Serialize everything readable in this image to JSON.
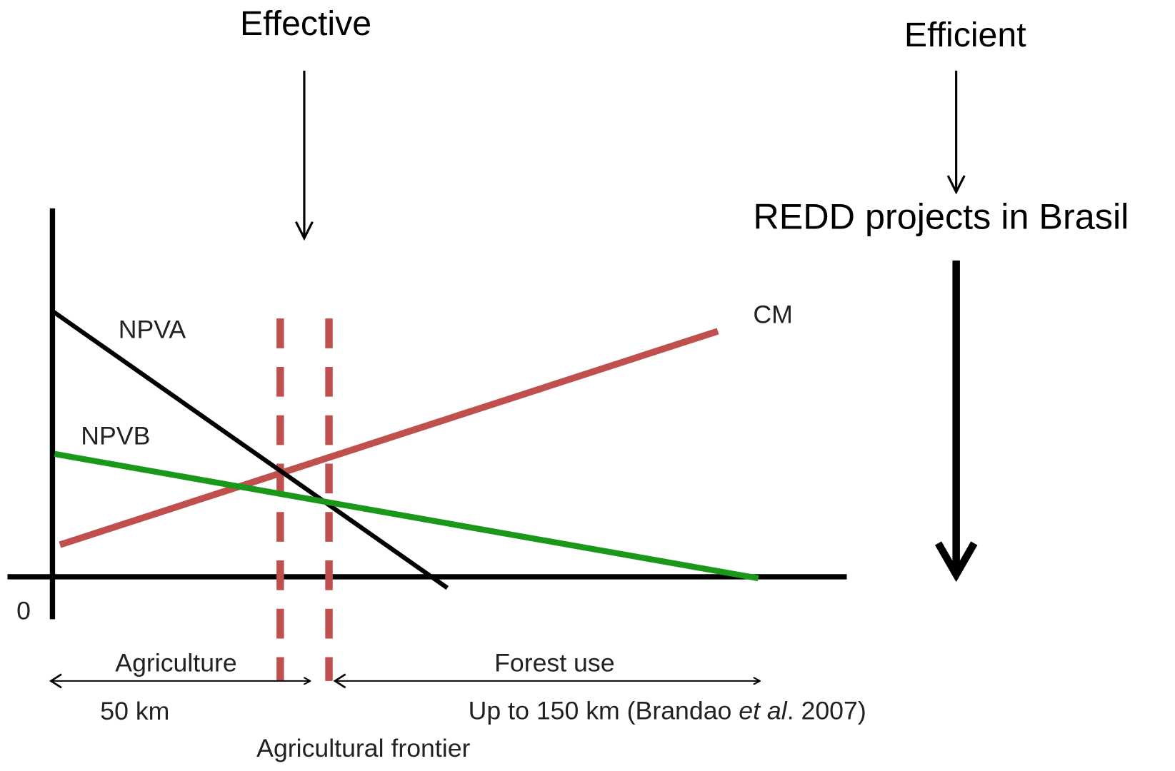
{
  "top_labels": {
    "effective": "Effective",
    "efficient": "Efficient",
    "redd": "REDD projects in Brasil"
  },
  "curves": {
    "npva": "NPVA",
    "npvb": "NPVB",
    "cm": "CM"
  },
  "origin": "0",
  "zones": {
    "agriculture": "Agriculture",
    "agriculture_distance": "50 km",
    "forest_use": "Forest use",
    "forest_distance": {
      "before": "Up to 150 km (Brandao ",
      "italic": "et al",
      "after": ". 2007)"
    },
    "frontier": "Agricultural frontier"
  }
}
